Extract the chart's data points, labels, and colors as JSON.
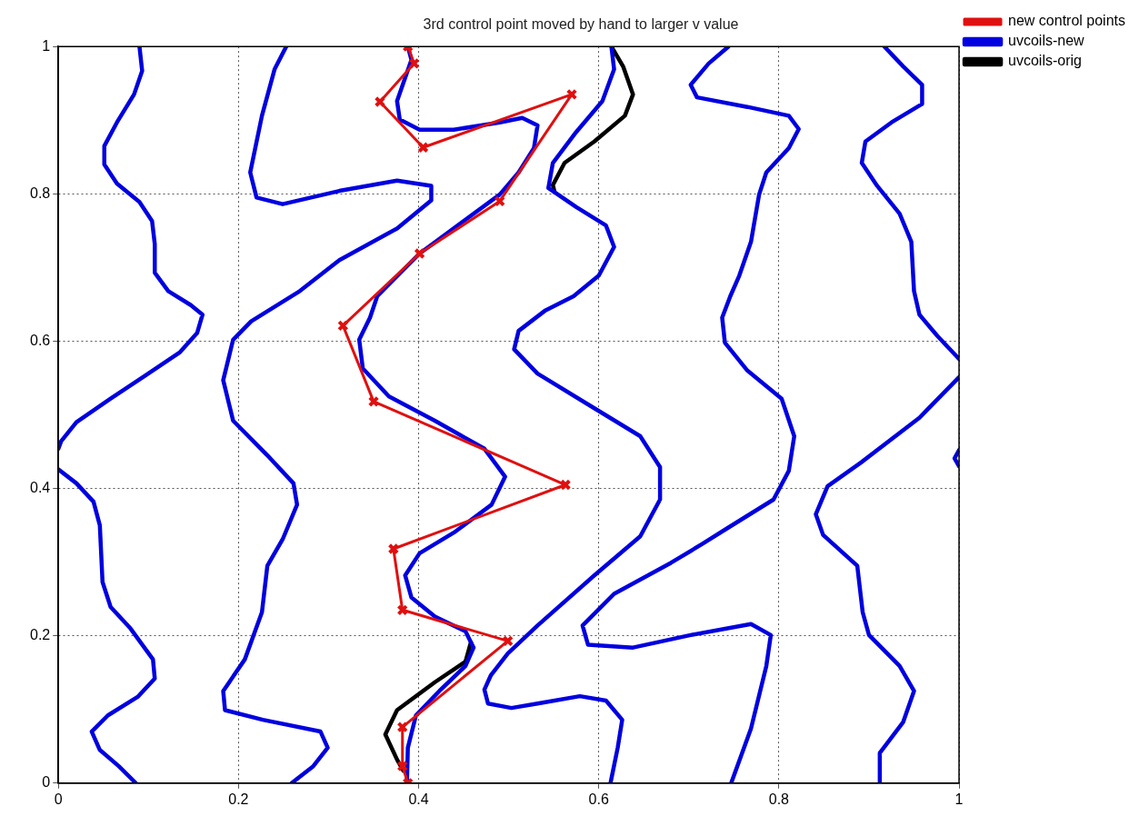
{
  "chart_data": {
    "type": "line",
    "title": "3rd control point moved by hand to larger v value",
    "xlim": [
      0,
      1
    ],
    "ylim": [
      0,
      1
    ],
    "xticks": [
      0,
      0.2,
      0.4,
      0.6,
      0.8,
      1
    ],
    "yticks": [
      0,
      0.2,
      0.4,
      0.6,
      0.8,
      1
    ],
    "grid": true,
    "legend": "top right",
    "series": [
      {
        "name": "uvcoils-orig",
        "color": "#000000",
        "marker": "none",
        "x": [
          0.614,
          0.627,
          0.638,
          0.629,
          0.595,
          0.562,
          0.549,
          0.551,
          null,
          0.458,
          0.452,
          0.418,
          0.376,
          0.363,
          0.376,
          0.383
        ],
        "values": [
          1.0,
          0.973,
          0.935,
          0.906,
          0.871,
          0.842,
          0.812,
          0.802,
          null,
          0.191,
          0.165,
          0.137,
          0.099,
          0.066,
          0.032,
          0.017
        ]
      },
      {
        "name": "uvcoils-new",
        "color": "#0000e0",
        "marker": "none",
        "x": [
          0.09,
          0.093,
          0.084,
          0.065,
          0.051,
          0.051,
          0.065,
          0.09,
          0.104,
          0.107,
          0.107,
          0.122,
          0.147,
          0.16,
          0.154,
          0.135,
          0.096,
          0.058,
          0.02,
          0.003,
          0,
          null,
          0,
          0.02,
          0.039,
          0.046,
          0.049,
          0.058,
          0.08,
          0.105,
          0.107,
          0.088,
          0.055,
          0.037,
          0.046,
          0.067,
          0.086,
          null,
          0.253,
          0.24,
          0.226,
          0.213,
          0.22,
          0.249,
          0.312,
          0.376,
          0.414,
          0.414,
          0.376,
          0.312,
          0.268,
          0.214,
          0.194,
          0.183,
          0.194,
          0.232,
          0.261,
          0.265,
          0.249,
          0.232,
          0.226,
          0.207,
          0.183,
          0.185,
          0.227,
          0.291,
          0.299,
          0.283,
          0.259,
          null,
          0.388,
          0.392,
          0.376,
          0.379,
          0.401,
          0.439,
          0.49,
          0.515,
          0.532,
          0.528,
          0.511,
          0.49,
          0.401,
          0.354,
          0.346,
          0.334,
          0.338,
          0.367,
          0.418,
          0.473,
          0.496,
          0.481,
          0.439,
          0.401,
          0.385,
          0.392,
          0.418,
          0.452,
          0.461,
          0.452,
          0.423,
          0.397,
          0.388,
          0.387,
          null,
          0.614,
          0.617,
          0.604,
          0.575,
          0.549,
          0.544,
          0.575,
          0.608,
          0.617,
          0.6,
          0.572,
          0.541,
          0.511,
          0.506,
          0.532,
          0.595,
          0.646,
          0.668,
          0.668,
          0.646,
          0.595,
          0.532,
          0.499,
          0.48,
          0.473,
          0.477,
          0.503,
          0.532,
          0.579,
          0.608,
          0.626,
          0.621,
          0.613,
          null,
          0.744,
          0.722,
          0.702,
          0.709,
          0.765,
          0.811,
          0.822,
          0.811,
          0.786,
          0.778,
          0.769,
          0.756,
          0.746,
          0.737,
          0.74,
          0.765,
          0.803,
          0.817,
          0.811,
          0.794,
          0.744,
          0.714,
          0.68,
          0.617,
          0.582,
          0.588,
          0.638,
          0.702,
          0.769,
          0.791,
          0.786,
          0.769,
          0.747,
          null,
          0.917,
          0.938,
          0.959,
          0.959,
          0.925,
          0.896,
          0.892,
          0.909,
          0.934,
          0.947,
          0.95,
          0.956,
          0.976,
          1,
          null,
          1,
          0.956,
          0.892,
          0.854,
          0.841,
          0.849,
          0.887,
          0.893,
          0.9,
          0.934,
          0.95,
          0.938,
          0.912,
          0.912,
          null,
          1,
          0.995,
          1
        ],
        "values": [
          1.0,
          0.967,
          0.935,
          0.897,
          0.865,
          0.84,
          0.814,
          0.789,
          0.763,
          0.732,
          0.693,
          0.668,
          0.649,
          0.636,
          0.611,
          0.585,
          0.553,
          0.522,
          0.49,
          0.464,
          0.454,
          null,
          0.426,
          0.407,
          0.382,
          0.35,
          0.273,
          0.239,
          0.21,
          0.168,
          0.142,
          0.117,
          0.092,
          0.07,
          0.045,
          0.023,
          0,
          null,
          1.0,
          0.969,
          0.906,
          0.829,
          0.795,
          0.786,
          0.804,
          0.818,
          0.811,
          0.791,
          0.753,
          0.71,
          0.668,
          0.627,
          0.602,
          0.547,
          0.492,
          0.445,
          0.407,
          0.378,
          0.331,
          0.295,
          0.232,
          0.168,
          0.125,
          0.099,
          0.086,
          0.07,
          0.048,
          0.023,
          0,
          null,
          1.0,
          0.982,
          0.926,
          0.901,
          0.887,
          0.887,
          0.897,
          0.903,
          0.893,
          0.862,
          0.829,
          0.799,
          0.719,
          0.661,
          0.632,
          0.602,
          0.563,
          0.525,
          0.492,
          0.454,
          0.416,
          0.378,
          0.34,
          0.312,
          0.282,
          0.252,
          0.226,
          0.206,
          0.184,
          0.159,
          0.125,
          0.092,
          0.048,
          0,
          null,
          1.0,
          0.969,
          0.926,
          0.884,
          0.842,
          0.808,
          0.782,
          0.757,
          0.728,
          0.689,
          0.661,
          0.642,
          0.614,
          0.589,
          0.556,
          0.509,
          0.471,
          0.429,
          0.385,
          0.335,
          0.282,
          0.214,
          0.176,
          0.146,
          0.127,
          0.108,
          0.102,
          0.108,
          0.118,
          0.112,
          0.086,
          0.048,
          0,
          null,
          1.0,
          0.977,
          0.948,
          0.931,
          0.918,
          0.906,
          0.888,
          0.862,
          0.829,
          0.799,
          0.735,
          0.689,
          0.661,
          0.632,
          0.598,
          0.56,
          0.522,
          0.471,
          0.424,
          0.385,
          0.347,
          0.324,
          0.299,
          0.257,
          0.214,
          0.188,
          0.184,
          0.201,
          0.216,
          0.201,
          0.159,
          0.074,
          0,
          null,
          1.0,
          0.973,
          0.948,
          0.922,
          0.897,
          0.871,
          0.842,
          0.811,
          0.773,
          0.735,
          0.668,
          0.636,
          0.607,
          0.576,
          null,
          0.551,
          0.496,
          0.436,
          0.403,
          0.365,
          0.337,
          0.295,
          0.232,
          0.201,
          0.159,
          0.125,
          0.083,
          0.041,
          0,
          null,
          0.452,
          0.441,
          0.43
        ]
      },
      {
        "name": "new control points",
        "color": "#e01010",
        "marker": "cross",
        "line_style": "solid",
        "x": [
          0.388,
          0.395,
          0.357,
          0.405,
          0.57,
          0.49,
          0.401,
          0.316,
          0.35,
          0.563,
          0.372,
          0.382,
          0.499,
          0.382,
          0.382,
          0.388
        ],
        "values": [
          1.0,
          0.977,
          0.925,
          0.863,
          0.935,
          0.79,
          0.719,
          0.621,
          0.518,
          0.405,
          0.318,
          0.235,
          0.193,
          0.076,
          0.023,
          0
        ]
      }
    ]
  }
}
